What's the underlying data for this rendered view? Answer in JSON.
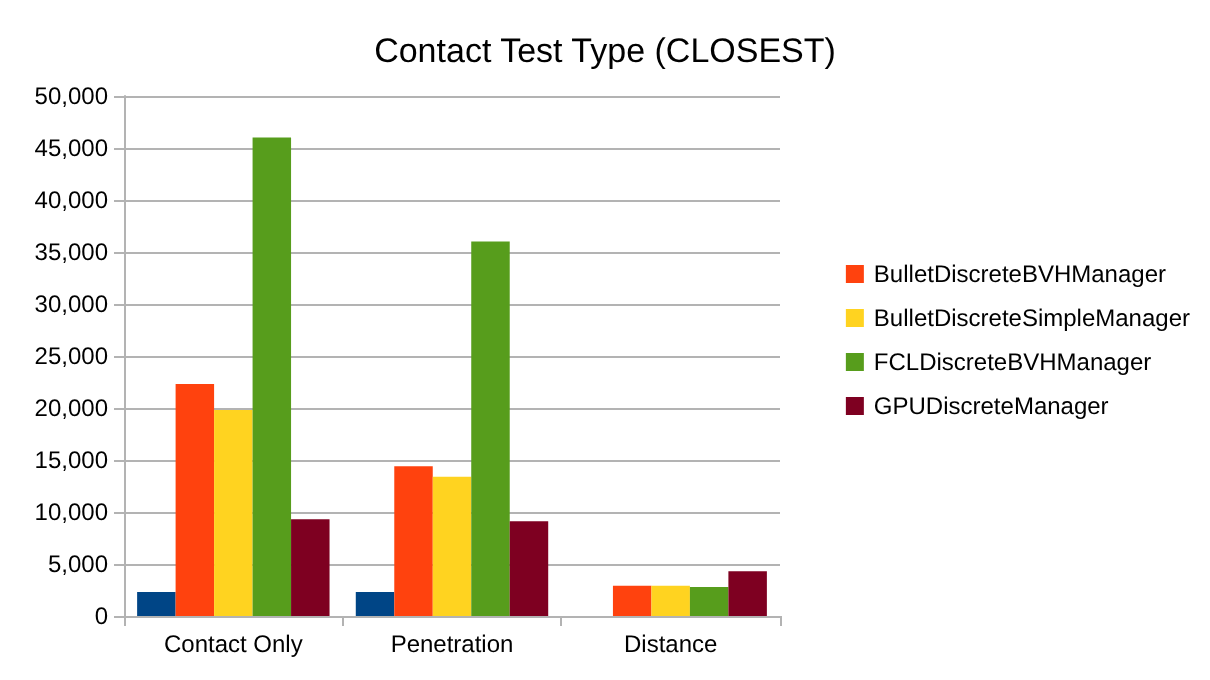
{
  "chart_data": {
    "type": "bar",
    "title": "Contact Test Type (CLOSEST)",
    "categories": [
      "Contact Only",
      "Penetration",
      "Distance"
    ],
    "series": [
      {
        "color": "#004586",
        "values": [
          2300,
          2300,
          null
        ]
      },
      {
        "name": "BulletDiscreteBVHManager",
        "color": "#ff420e",
        "values": [
          22300,
          14400,
          2900
        ]
      },
      {
        "name": "BulletDiscreteSimpleManager",
        "color": "#ffd320",
        "values": [
          19800,
          13400,
          2900
        ]
      },
      {
        "name": "FCLDiscreteBVHManager",
        "color": "#579d1c",
        "values": [
          46000,
          36000,
          2800
        ]
      },
      {
        "name": "GPUDiscreteManager",
        "color": "#7e0021",
        "values": [
          9300,
          9100,
          4300
        ]
      }
    ],
    "ylim": [
      0,
      50000
    ],
    "yticks": [
      0,
      {
        "value": 5000,
        "label": "5,000"
      },
      {
        "value": 10000,
        "label": "10,000"
      },
      {
        "value": 15000,
        "label": "15,000"
      },
      {
        "value": 20000,
        "label": "20,000"
      },
      {
        "value": 25000,
        "label": "25,000"
      },
      {
        "value": 30000,
        "label": "30,000"
      },
      {
        "value": 35000,
        "label": "35,000"
      },
      {
        "value": 40000,
        "label": "40,000"
      },
      {
        "value": 45000,
        "label": "45,000"
      },
      {
        "value": 50000,
        "label": "50,000"
      }
    ],
    "grid": "y",
    "legend": "right"
  }
}
